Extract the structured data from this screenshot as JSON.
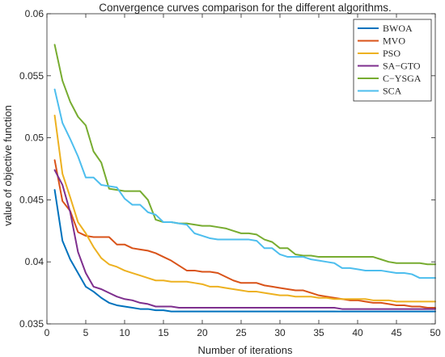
{
  "chart_data": {
    "type": "line",
    "title": "Convergence curves comparison for the different algorithms.",
    "xlabel": "Number of iterations",
    "ylabel": "value of objective function",
    "xlim": [
      0,
      50
    ],
    "ylim": [
      0.035,
      0.06
    ],
    "xticks": [
      0,
      5,
      10,
      15,
      20,
      25,
      30,
      35,
      40,
      45,
      50
    ],
    "yticks": [
      0.035,
      0.04,
      0.045,
      0.05,
      0.055,
      0.06
    ],
    "ytick_labels": [
      "0.035",
      "0.04",
      "0.045",
      "0.05",
      "0.055",
      "0.06"
    ],
    "grid": false,
    "legend_position": "top-right",
    "x": [
      1,
      2,
      3,
      4,
      5,
      6,
      7,
      8,
      9,
      10,
      11,
      12,
      13,
      14,
      15,
      16,
      17,
      18,
      19,
      20,
      21,
      22,
      23,
      24,
      25,
      26,
      27,
      28,
      29,
      30,
      31,
      32,
      33,
      34,
      35,
      36,
      37,
      38,
      39,
      40,
      41,
      42,
      43,
      44,
      45,
      46,
      47,
      48,
      49,
      50
    ],
    "series": [
      {
        "name": "BWOA",
        "color": "#0072BD",
        "values": [
          0.0458,
          0.0417,
          0.0402,
          0.0391,
          0.038,
          0.0376,
          0.0371,
          0.0367,
          0.0365,
          0.0364,
          0.0363,
          0.0362,
          0.0362,
          0.0361,
          0.0361,
          0.036,
          0.036,
          0.036,
          0.036,
          0.036,
          0.036,
          0.036,
          0.036,
          0.036,
          0.036,
          0.036,
          0.036,
          0.036,
          0.036,
          0.036,
          0.036,
          0.036,
          0.036,
          0.036,
          0.036,
          0.036,
          0.036,
          0.036,
          0.036,
          0.036,
          0.036,
          0.036,
          0.036,
          0.036,
          0.036,
          0.036,
          0.036,
          0.036,
          0.036,
          0.036
        ]
      },
      {
        "name": "MVO",
        "color": "#D95319",
        "values": [
          0.0482,
          0.0449,
          0.0441,
          0.0424,
          0.0421,
          0.042,
          0.042,
          0.042,
          0.0414,
          0.0414,
          0.0411,
          0.041,
          0.0409,
          0.0407,
          0.0404,
          0.0401,
          0.0397,
          0.0393,
          0.0393,
          0.0392,
          0.0392,
          0.0391,
          0.0388,
          0.0385,
          0.0383,
          0.0383,
          0.0383,
          0.0381,
          0.038,
          0.0379,
          0.0378,
          0.0377,
          0.0377,
          0.0375,
          0.0373,
          0.0372,
          0.0371,
          0.037,
          0.0369,
          0.0369,
          0.0368,
          0.0367,
          0.0367,
          0.0366,
          0.0365,
          0.0365,
          0.0364,
          0.0364,
          0.0363,
          0.0363
        ]
      },
      {
        "name": "PSO",
        "color": "#EDB120",
        "values": [
          0.0518,
          0.0471,
          0.0452,
          0.0432,
          0.0423,
          0.0412,
          0.0403,
          0.0398,
          0.0396,
          0.0393,
          0.0391,
          0.0389,
          0.0387,
          0.0385,
          0.0385,
          0.0384,
          0.0384,
          0.0384,
          0.0383,
          0.0382,
          0.038,
          0.038,
          0.0379,
          0.0378,
          0.0377,
          0.0376,
          0.0376,
          0.0375,
          0.0374,
          0.0373,
          0.0373,
          0.0372,
          0.0372,
          0.0372,
          0.0371,
          0.0371,
          0.037,
          0.037,
          0.037,
          0.037,
          0.037,
          0.0369,
          0.0369,
          0.0369,
          0.0368,
          0.0368,
          0.0368,
          0.0368,
          0.0368,
          0.0368
        ]
      },
      {
        "name": "SA−GTO",
        "color": "#7E2F8E",
        "values": [
          0.0474,
          0.0462,
          0.044,
          0.0408,
          0.0391,
          0.038,
          0.0378,
          0.0375,
          0.0372,
          0.037,
          0.0369,
          0.0367,
          0.0366,
          0.0364,
          0.0364,
          0.0364,
          0.0363,
          0.0363,
          0.0363,
          0.0363,
          0.0363,
          0.0363,
          0.0363,
          0.0363,
          0.0363,
          0.0363,
          0.0363,
          0.0363,
          0.0363,
          0.0363,
          0.0363,
          0.0363,
          0.0363,
          0.0363,
          0.0363,
          0.0363,
          0.0363,
          0.0362,
          0.0362,
          0.0362,
          0.0362,
          0.0362,
          0.0362,
          0.0362,
          0.0362,
          0.0362,
          0.0362,
          0.0362,
          0.0362,
          0.0362
        ]
      },
      {
        "name": "C−YSGA",
        "color": "#77AC30",
        "values": [
          0.0575,
          0.0546,
          0.0529,
          0.0517,
          0.051,
          0.0489,
          0.048,
          0.0459,
          0.0458,
          0.0457,
          0.0457,
          0.0457,
          0.045,
          0.0434,
          0.0432,
          0.0432,
          0.0431,
          0.0431,
          0.043,
          0.0429,
          0.0429,
          0.0428,
          0.0427,
          0.0425,
          0.0423,
          0.0423,
          0.0422,
          0.0418,
          0.0416,
          0.0411,
          0.0411,
          0.0406,
          0.0405,
          0.0405,
          0.0404,
          0.0404,
          0.0404,
          0.0404,
          0.0404,
          0.0404,
          0.0404,
          0.0404,
          0.0402,
          0.04,
          0.0399,
          0.0399,
          0.0399,
          0.0399,
          0.0398,
          0.0398
        ]
      },
      {
        "name": "SCA",
        "color": "#4DBEEE",
        "values": [
          0.0539,
          0.0512,
          0.0499,
          0.0485,
          0.0468,
          0.0468,
          0.0462,
          0.0461,
          0.046,
          0.0451,
          0.0446,
          0.0446,
          0.044,
          0.0438,
          0.0432,
          0.0432,
          0.0431,
          0.043,
          0.0423,
          0.0421,
          0.0419,
          0.0418,
          0.0418,
          0.0418,
          0.0418,
          0.0418,
          0.0417,
          0.0411,
          0.0411,
          0.0406,
          0.0404,
          0.0404,
          0.0404,
          0.0402,
          0.0401,
          0.04,
          0.0399,
          0.0395,
          0.0395,
          0.0394,
          0.0393,
          0.0393,
          0.0393,
          0.0392,
          0.0391,
          0.0391,
          0.039,
          0.0387,
          0.0387,
          0.0387
        ]
      }
    ]
  }
}
